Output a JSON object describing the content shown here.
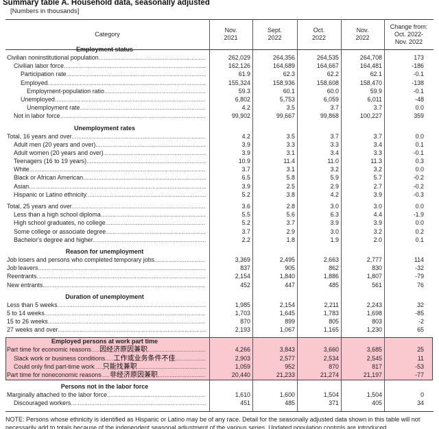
{
  "title": "Summary table A. Household data, seasonally adjusted",
  "subtitle": "[Numbers in thousands]",
  "columns": [
    "Category",
    "Nov.\n2021",
    "Sept.\n2022",
    "Oct.\n2022",
    "Nov.\n2022",
    "Change from:\nOct. 2022-\nNov. 2022"
  ],
  "highlight_color": "#f9c9cf",
  "sections": [
    {
      "heading": "Employment status",
      "groups": [
        [
          {
            "label": "Civilian noninstitutional population",
            "indent": 0,
            "values": [
              "262,029",
              "264,356",
              "264,535",
              "264,708",
              "173"
            ]
          },
          {
            "label": "Civilian labor force",
            "indent": 1,
            "values": [
              "162,126",
              "164,689",
              "164,667",
              "164,481",
              "-186"
            ]
          },
          {
            "label": "Participation rate",
            "indent": 2,
            "values": [
              "61.9",
              "62.3",
              "62.2",
              "62.1",
              "-0.1"
            ]
          },
          {
            "label": "Employed",
            "indent": 2,
            "values": [
              "155,324",
              "158,936",
              "158,608",
              "158,470",
              "-138"
            ]
          },
          {
            "label": "Employment-population ratio",
            "indent": 3,
            "values": [
              "59.3",
              "60.1",
              "60.0",
              "59.9",
              "-0.1"
            ]
          },
          {
            "label": "Unemployed",
            "indent": 2,
            "values": [
              "6,802",
              "5,753",
              "6,059",
              "6,011",
              "-48"
            ]
          },
          {
            "label": "Unemployment rate",
            "indent": 3,
            "values": [
              "4.2",
              "3.5",
              "3.7",
              "3.7",
              "0.0"
            ]
          },
          {
            "label": "Not in labor force",
            "indent": 1,
            "values": [
              "99,902",
              "99,667",
              "99,868",
              "100,227",
              "359"
            ]
          }
        ]
      ]
    },
    {
      "heading": "Unemployment rates",
      "groups": [
        [
          {
            "label": "Total, 16 years and over",
            "indent": 0,
            "values": [
              "4.2",
              "3.5",
              "3.7",
              "3.7",
              "0.0"
            ]
          },
          {
            "label": "Adult men (20 years and over)",
            "indent": 1,
            "values": [
              "3.9",
              "3.3",
              "3.3",
              "3.4",
              "0.1"
            ]
          },
          {
            "label": "Adult women (20 years and over)",
            "indent": 1,
            "values": [
              "3.9",
              "3.1",
              "3.4",
              "3.3",
              "-0.1"
            ]
          },
          {
            "label": "Teenagers (16 to 19 years)",
            "indent": 1,
            "values": [
              "10.9",
              "11.4",
              "11.0",
              "11.3",
              "0.3"
            ]
          },
          {
            "label": "White",
            "indent": 1,
            "values": [
              "3.7",
              "3.1",
              "3.2",
              "3.2",
              "0.0"
            ]
          },
          {
            "label": "Black or African American",
            "indent": 1,
            "values": [
              "6.5",
              "5.8",
              "5.9",
              "5.7",
              "-0.2"
            ]
          },
          {
            "label": "Asian",
            "indent": 1,
            "values": [
              "3.9",
              "2.5",
              "2.9",
              "2.7",
              "-0.2"
            ]
          },
          {
            "label": "Hispanic or Latino ethnicity",
            "indent": 1,
            "values": [
              "5.2",
              "3.8",
              "4.2",
              "3.9",
              "-0.3"
            ]
          }
        ],
        [
          {
            "label": "Total, 25 years and over",
            "indent": 0,
            "values": [
              "3.6",
              "2.8",
              "3.0",
              "3.0",
              "0.0"
            ]
          },
          {
            "label": "Less than a high school diploma",
            "indent": 1,
            "values": [
              "5.5",
              "5.6",
              "6.3",
              "4.4",
              "-1.9"
            ]
          },
          {
            "label": "High school graduates, no college",
            "indent": 1,
            "values": [
              "5.2",
              "3.7",
              "3.9",
              "3.9",
              "0.0"
            ]
          },
          {
            "label": "Some college or associate degree",
            "indent": 1,
            "values": [
              "3.7",
              "2.9",
              "3.0",
              "3.2",
              "0.2"
            ]
          },
          {
            "label": "Bachelor's degree and higher",
            "indent": 1,
            "values": [
              "2.2",
              "1.8",
              "1.9",
              "2.0",
              "0.1"
            ]
          }
        ]
      ]
    },
    {
      "heading": "Reason for unemployment",
      "groups": [
        [
          {
            "label": "Job losers and persons who completed temporary jobs",
            "indent": 0,
            "values": [
              "3,369",
              "2,495",
              "2,663",
              "2,777",
              "114"
            ]
          },
          {
            "label": "Job leavers",
            "indent": 0,
            "values": [
              "837",
              "905",
              "862",
              "830",
              "-32"
            ]
          },
          {
            "label": "Reentrants",
            "indent": 0,
            "values": [
              "2,154",
              "1,840",
              "1,886",
              "1,807",
              "-79"
            ]
          },
          {
            "label": "New entrants",
            "indent": 0,
            "values": [
              "452",
              "447",
              "485",
              "561",
              "76"
            ]
          }
        ]
      ]
    },
    {
      "heading": "Duration of unemployment",
      "groups": [
        [
          {
            "label": "Less than 5 weeks",
            "indent": 0,
            "values": [
              "1,985",
              "2,154",
              "2,211",
              "2,243",
              "32"
            ]
          },
          {
            "label": "5 to 14 weeks",
            "indent": 0,
            "values": [
              "1,703",
              "1,645",
              "1,783",
              "1,698",
              "-85"
            ]
          },
          {
            "label": "15 to 26 weeks",
            "indent": 0,
            "values": [
              "870",
              "899",
              "805",
              "803",
              "-2"
            ]
          },
          {
            "label": "27 weeks and over",
            "indent": 0,
            "values": [
              "2,193",
              "1,067",
              "1,165",
              "1,230",
              "65"
            ]
          }
        ]
      ]
    },
    {
      "heading": "Employed persons at work part time",
      "highlight": true,
      "groups": [
        [
          {
            "label": "Part time for economic reasons",
            "annotation": "因经济原因兼职",
            "indent": 0,
            "values": [
              "4,266",
              "3,843",
              "3,660",
              "3,685",
              "25"
            ]
          },
          {
            "label": "Slack work or business conditions",
            "annotation": "工作或业务条件不佳",
            "indent": 1,
            "values": [
              "2,903",
              "2,577",
              "2,534",
              "2,545",
              "11"
            ]
          },
          {
            "label": "Could only find part-time work",
            "annotation": "只能找兼职",
            "indent": 1,
            "values": [
              "1,059",
              "952",
              "870",
              "817",
              "-53"
            ]
          },
          {
            "label": "Part time for noneconomic reasons",
            "annotation": "非经济原因兼职",
            "indent": 0,
            "values": [
              "20,440",
              "21,233",
              "21,274",
              "21,197",
              "-77"
            ]
          }
        ]
      ]
    },
    {
      "heading": "Persons not in the labor force",
      "groups": [
        [
          {
            "label": "Marginally attached to the labor force",
            "indent": 0,
            "values": [
              "1,610",
              "1,600",
              "1,504",
              "1,504",
              "0"
            ]
          },
          {
            "label": "Discouraged workers",
            "indent": 1,
            "values": [
              "451",
              "485",
              "371",
              "405",
              "34"
            ]
          }
        ]
      ]
    }
  ],
  "note": "NOTE: Persons whose ethnicity is identified as Hispanic or Latino may be of any race. Detail for the seasonally adjusted data shown in this table will not necessarily add to totals because of the independent seasonal adjustment of the various series. Updated population controls are introduced"
}
